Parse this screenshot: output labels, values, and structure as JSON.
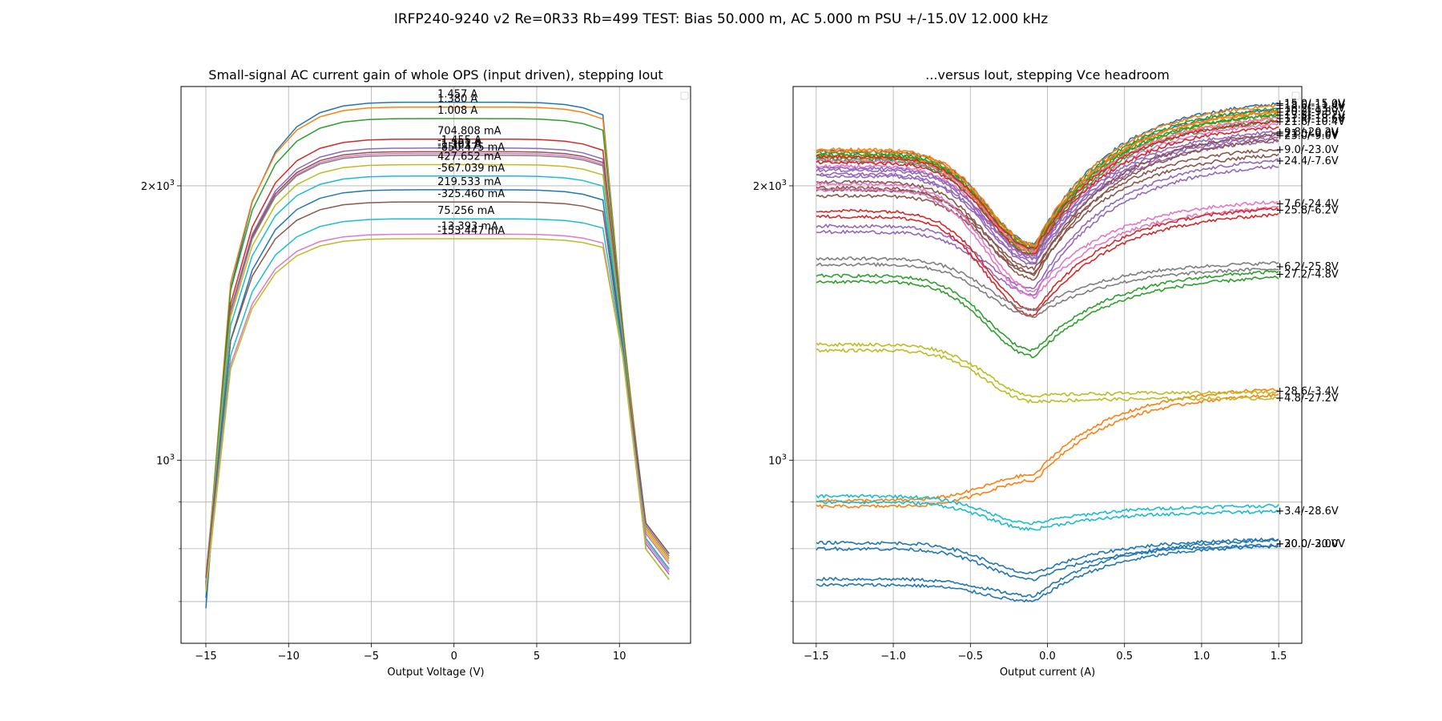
{
  "figure": {
    "suptitle": "IRFP240-9240 v2 Re=0R33 Rb=499 TEST: Bias 50.000 m, AC 5.000 m PSU +/-15.0V 12.000 kHz"
  },
  "chart_data": [
    {
      "type": "line",
      "title": "Small-signal AC current gain of whole OPS (input driven), stepping Iout",
      "xlabel": "Output Voltage (V)",
      "ylabel": "",
      "xscale": "linear",
      "yscale": "log",
      "xlim": [
        -16.5,
        14.3
      ],
      "ylim": [
        630,
        2570
      ],
      "xticks": [
        -15,
        -10,
        -5,
        0,
        5,
        10
      ],
      "yticks_major": [
        {
          "value": 1000,
          "label": "10^3"
        },
        {
          "value": 2000,
          "label": "2×10^3"
        }
      ],
      "yticks_minor": [
        700,
        800,
        900
      ],
      "grid": true,
      "legend": "empty box, top-right",
      "x": [
        -15,
        -13.5,
        -12.2,
        -10.8,
        -9.5,
        -8.1,
        -6.7,
        -5.2,
        -3.7,
        -2.2,
        -0.8,
        0.7,
        2.2,
        3.7,
        5.2,
        6.7,
        7.8,
        9,
        10.2,
        11.6,
        13
      ],
      "series": [
        {
          "label": "1.457 A",
          "color": "#1f77b4",
          "peak": 2470,
          "end": 740
        },
        {
          "label": "1.380 A",
          "color": "#ff7f0e",
          "peak": 2440,
          "end": 780
        },
        {
          "label": "1.008 A",
          "color": "#2ca02c",
          "peak": 2370,
          "end": 770
        },
        {
          "label": "704.808 mA",
          "color": "#d62728",
          "peak": 2250,
          "end": 760
        },
        {
          "label": "-1.455 A",
          "color": "#9467bd",
          "peak": 2200,
          "end": 750
        },
        {
          "label": "-1.191 A",
          "color": "#8c564b",
          "peak": 2180,
          "end": 790
        },
        {
          "label": "-1.303 A",
          "color": "#e377c2",
          "peak": 2170,
          "end": 770
        },
        {
          "label": "-850.475 mA",
          "color": "#7f7f7f",
          "peak": 2160,
          "end": 785
        },
        {
          "label": "427.652 mA",
          "color": "#bcbd22",
          "peak": 2110,
          "end": 775
        },
        {
          "label": "-567.039 mA",
          "color": "#17becf",
          "peak": 2050,
          "end": 760
        },
        {
          "label": "219.533 mA",
          "color": "#1f77b4",
          "peak": 1980,
          "end": 760
        },
        {
          "label": "-325.460 mA",
          "color": "#8c564b",
          "peak": 1920,
          "end": 790
        },
        {
          "label": "75.256 mA",
          "color": "#17becf",
          "peak": 1840,
          "end": 760
        },
        {
          "label": "-13.393 mA",
          "color": "#e377c2",
          "peak": 1770,
          "end": 755
        },
        {
          "label": "-153.447 mA",
          "color": "#bcbd22",
          "peak": 1750,
          "end": 740
        }
      ]
    },
    {
      "type": "line",
      "title": "...versus Iout, stepping Vce headroom",
      "xlabel": "Output current (A)",
      "ylabel": "",
      "xscale": "linear",
      "yscale": "log",
      "xlim": [
        -1.65,
        1.65
      ],
      "ylim": [
        630,
        2570
      ],
      "xticks": [
        -1.5,
        -1.0,
        -0.5,
        0.0,
        0.5,
        1.0,
        1.5
      ],
      "yticks_major": [
        {
          "value": 1000,
          "label": "10^3"
        },
        {
          "value": 2000,
          "label": "2×10^3"
        }
      ],
      "yticks_minor": [
        700,
        800,
        900
      ],
      "grid": true,
      "legend": "empty box, top-right",
      "series": [
        {
          "label": "+15.0/-15.0V",
          "color": "#1f77b4",
          "left": 2150,
          "dip": 1700,
          "right": 2460
        },
        {
          "label": "+18.6/-11.4V",
          "color": "#ff7f0e",
          "left": 2160,
          "dip": 1700,
          "right": 2450
        },
        {
          "label": "+16.2/-13.8V",
          "color": "#2ca02c",
          "left": 2140,
          "dip": 1690,
          "right": 2430
        },
        {
          "label": "+20.2/-9.8V",
          "color": "#ff7f0e",
          "left": 2150,
          "dip": 1690,
          "right": 2410
        },
        {
          "label": "+13.8/-16.2V",
          "color": "#2ca02c",
          "left": 2130,
          "dip": 1680,
          "right": 2390
        },
        {
          "label": "+11.4/-18.6V",
          "color": "#e377c2",
          "left": 2100,
          "dip": 1670,
          "right": 2370
        },
        {
          "label": "+21.6/-10.4V",
          "color": "#d62728",
          "left": 2120,
          "dip": 1680,
          "right": 2350
        },
        {
          "label": "+9.8/-20.2V",
          "color": "#9467bd",
          "left": 2060,
          "dip": 1650,
          "right": 2290
        },
        {
          "label": "+23.0/-9.0V",
          "color": "#9467bd",
          "left": 2050,
          "dip": 1640,
          "right": 2270
        },
        {
          "label": "+21.0/-9.0V",
          "color": "#8c564b",
          "left": 1990,
          "dip": 1580,
          "right": 2280
        },
        {
          "label": "+9.0/-23.0V",
          "color": "#8c564b",
          "left": 1950,
          "dip": 1600,
          "right": 2190
        },
        {
          "label": "+24.4/-7.6V",
          "color": "#9467bd",
          "left": 1780,
          "dip": 1520,
          "right": 2130
        },
        {
          "label": "+7.6/-24.4V",
          "color": "#e377c2",
          "left": 1980,
          "dip": 1510,
          "right": 1910
        },
        {
          "label": "+25.8/-6.2V",
          "color": "#d62728",
          "left": 1850,
          "dip": 1440,
          "right": 1880
        },
        {
          "label": "+6.2/-25.8V",
          "color": "#7f7f7f",
          "left": 1640,
          "dip": 1440,
          "right": 1630
        },
        {
          "label": "+27.2/-4.8V",
          "color": "#2ca02c",
          "left": 1570,
          "dip": 1300,
          "right": 1600
        },
        {
          "label": "+28.6/-3.4V",
          "color": "#ff7f0e",
          "left": 890,
          "dip": 950,
          "right": 1190
        },
        {
          "label": "+4.8/-27.2V",
          "color": "#bcbd22",
          "left": 1320,
          "dip": 1160,
          "right": 1170
        },
        {
          "label": "+3.4/-28.6V",
          "color": "#17becf",
          "left": 900,
          "dip": 840,
          "right": 880
        },
        {
          "label": "+20.0/-30.0V",
          "color": "#1f77b4",
          "left": 800,
          "dip": 740,
          "right": 810
        },
        {
          "label": "+30.0/-2.0V",
          "color": "#1f77b4",
          "left": 730,
          "dip": 700,
          "right": 810
        }
      ]
    }
  ]
}
